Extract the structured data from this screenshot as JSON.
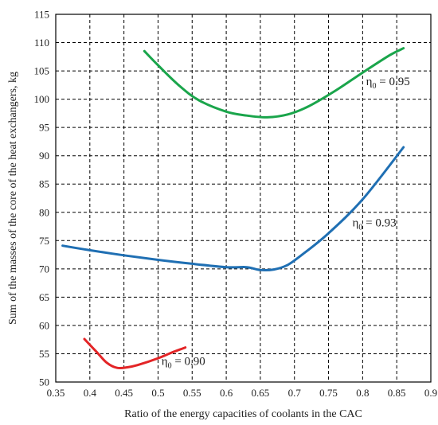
{
  "chart_data": {
    "type": "line",
    "xlabel": "Ratio of the energy capacities of coolants in the CAC",
    "ylabel": "Sum of the masses of the core of the heat exchangers, kg",
    "xlim": [
      0.35,
      0.9
    ],
    "ylim": [
      50,
      115
    ],
    "xticks": [
      "0.35",
      "0.4",
      "0.45",
      "0.5",
      "0.55",
      "0.6",
      "0.65",
      "0.7",
      "0.75",
      "0.8",
      "0.85",
      "0.9"
    ],
    "yticks": [
      "50",
      "55",
      "60",
      "65",
      "70",
      "75",
      "80",
      "85",
      "90",
      "95",
      "100",
      "105",
      "110",
      "115"
    ],
    "grid": true,
    "series": [
      {
        "color": "#1aa54b",
        "label": {
          "symbol": "η",
          "sub": "0",
          "text": " = 0.95",
          "x": 0.805,
          "y": 102.5
        },
        "x": [
          0.48,
          0.5,
          0.53,
          0.56,
          0.6,
          0.63,
          0.66,
          0.69,
          0.72,
          0.76,
          0.8,
          0.84,
          0.86
        ],
        "y": [
          108.5,
          106.0,
          102.5,
          99.8,
          97.8,
          97.1,
          96.8,
          97.3,
          98.7,
          101.5,
          104.7,
          107.8,
          109.0
        ]
      },
      {
        "color": "#1f6fb3",
        "label": {
          "symbol": "η",
          "sub": "0",
          "text": " = 0.93",
          "x": 0.785,
          "y": 77.5
        },
        "x": [
          0.36,
          0.4,
          0.45,
          0.5,
          0.55,
          0.6,
          0.63,
          0.65,
          0.67,
          0.69,
          0.71,
          0.75,
          0.8,
          0.86
        ],
        "y": [
          74.1,
          73.3,
          72.4,
          71.6,
          70.9,
          70.3,
          70.3,
          69.8,
          69.9,
          70.7,
          72.4,
          76.3,
          82.3,
          91.5
        ]
      },
      {
        "color": "#e32426",
        "label": {
          "symbol": "η",
          "sub": "0",
          "text": " = 0.90",
          "x": 0.505,
          "y": 53.0
        },
        "x": [
          0.392,
          0.41,
          0.425,
          0.44,
          0.455,
          0.47,
          0.5,
          0.52,
          0.54
        ],
        "y": [
          57.6,
          55.3,
          53.4,
          52.5,
          52.6,
          53.0,
          54.2,
          55.2,
          56.1
        ]
      }
    ]
  }
}
